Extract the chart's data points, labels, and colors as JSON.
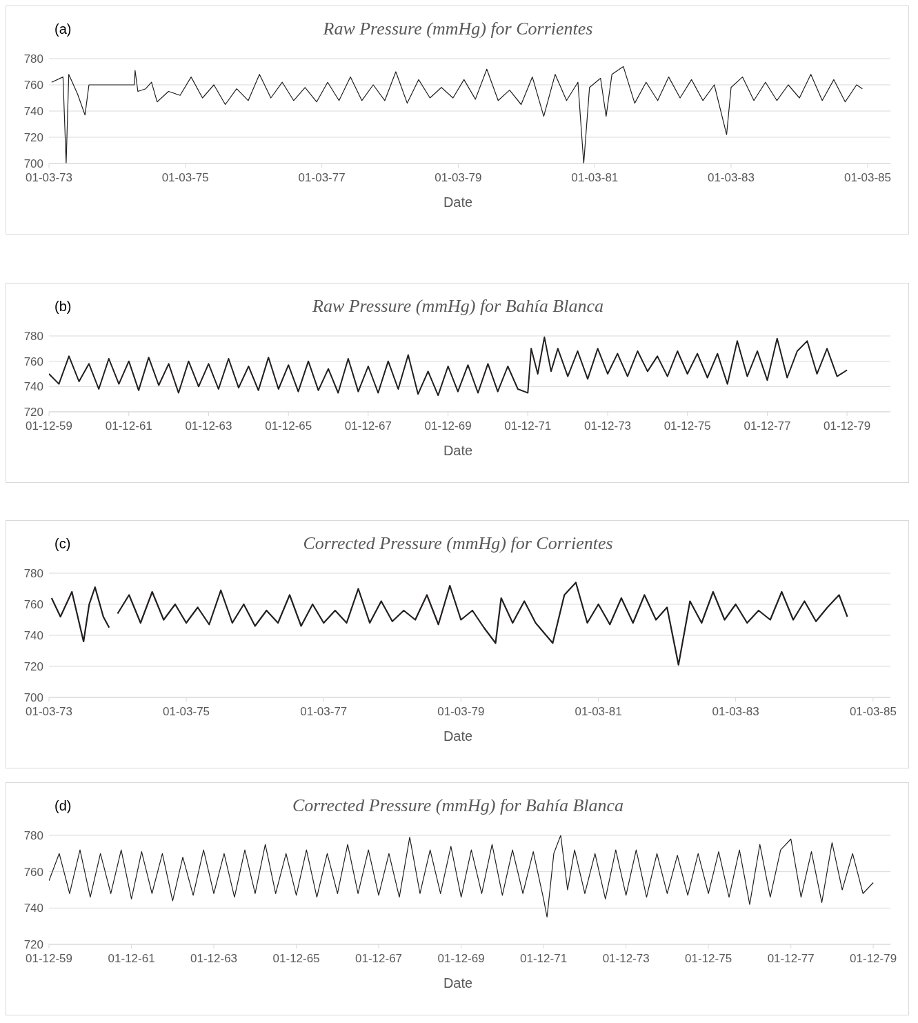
{
  "chart_data": [
    {
      "type": "line",
      "title": "Raw Pressure (mmHg) for Corrientes",
      "xlabel": "Date",
      "annotations": [
        "(a)"
      ],
      "grid": "y",
      "xlim": [
        "1973-03-01",
        "1985-07-01"
      ],
      "ylim": [
        700,
        780
      ],
      "yticks": [
        700,
        720,
        740,
        760,
        780
      ],
      "xticks": [
        {
          "value": "1973-03-01",
          "label": "01-03-73"
        },
        {
          "value": "1975-03-01",
          "label": "01-03-75"
        },
        {
          "value": "1977-03-01",
          "label": "01-03-77"
        },
        {
          "value": "1979-03-01",
          "label": "01-03-79"
        },
        {
          "value": "1981-03-01",
          "label": "01-03-81"
        },
        {
          "value": "1983-03-01",
          "label": "01-03-83"
        },
        {
          "value": "1985-03-01",
          "label": "01-03-85"
        }
      ],
      "x": [
        "1973-03-15",
        "1973-05-15",
        "1973-06-01",
        "1973-06-15",
        "1973-08-01",
        "1973-09-10",
        "1973-10-01",
        "1974-06-01",
        "1974-06-05",
        "1974-06-20",
        "1974-08-01",
        "1974-09-01",
        "1974-10-01",
        "1974-12-01",
        "1975-02-01",
        "1975-04-01",
        "1975-06-01",
        "1975-08-01",
        "1975-10-01",
        "1975-12-01",
        "1976-02-01",
        "1976-04-01",
        "1976-06-01",
        "1976-08-01",
        "1976-10-01",
        "1976-12-01",
        "1977-02-01",
        "1977-04-01",
        "1977-06-01",
        "1977-08-01",
        "1977-10-01",
        "1977-12-01",
        "1978-02-01",
        "1978-04-01",
        "1978-06-01",
        "1978-08-01",
        "1978-10-01",
        "1978-12-01",
        "1979-02-01",
        "1979-04-01",
        "1979-06-01",
        "1979-08-01",
        "1979-10-01",
        "1979-12-01",
        "1980-02-01",
        "1980-04-01",
        "1980-06-01",
        "1980-08-01",
        "1980-10-01",
        "1980-12-01",
        "1981-01-01",
        "1981-02-01",
        "1981-04-01",
        "1981-05-01",
        "1981-06-01",
        "1981-08-01",
        "1981-10-01",
        "1981-12-01",
        "1982-02-01",
        "1982-04-01",
        "1982-06-01",
        "1982-08-01",
        "1982-10-01",
        "1982-12-01",
        "1983-02-05",
        "1983-03-01",
        "1983-05-01",
        "1983-07-01",
        "1983-09-01",
        "1983-11-01",
        "1984-01-01",
        "1984-03-01",
        "1984-05-01",
        "1984-07-01",
        "1984-09-01",
        "1984-11-01",
        "1985-01-01",
        "1985-02-01"
      ],
      "series": [
        {
          "color": "#231f20",
          "values": [
            762,
            766,
            700,
            768,
            753,
            737,
            760,
            760,
            771,
            755,
            757,
            762,
            747,
            755,
            752,
            766,
            750,
            760,
            745,
            757,
            748,
            768,
            750,
            762,
            748,
            758,
            747,
            762,
            748,
            766,
            748,
            760,
            748,
            770,
            746,
            764,
            750,
            758,
            750,
            764,
            749,
            772,
            748,
            756,
            745,
            766,
            736,
            768,
            748,
            762,
            700,
            758,
            765,
            736,
            768,
            774,
            746,
            762,
            748,
            766,
            750,
            764,
            748,
            760,
            722,
            758,
            766,
            748,
            762,
            748,
            760,
            750,
            768,
            748,
            764,
            747,
            760,
            757
          ]
        }
      ]
    },
    {
      "type": "line",
      "title": "Raw Pressure (mmHg) for Bahía Blanca",
      "xlabel": "Date",
      "annotations": [
        "(b)"
      ],
      "grid": "y",
      "xlim": [
        "1959-12-01",
        "1981-01-01"
      ],
      "ylim": [
        720,
        780
      ],
      "yticks": [
        720,
        740,
        760,
        780
      ],
      "xticks": [
        {
          "value": "1959-12-01",
          "label": "01-12-59"
        },
        {
          "value": "1961-12-01",
          "label": "01-12-61"
        },
        {
          "value": "1963-12-01",
          "label": "01-12-63"
        },
        {
          "value": "1965-12-01",
          "label": "01-12-65"
        },
        {
          "value": "1967-12-01",
          "label": "01-12-67"
        },
        {
          "value": "1969-12-01",
          "label": "01-12-69"
        },
        {
          "value": "1971-12-01",
          "label": "01-12-71"
        },
        {
          "value": "1973-12-01",
          "label": "01-12-73"
        },
        {
          "value": "1975-12-01",
          "label": "01-12-75"
        },
        {
          "value": "1977-12-01",
          "label": "01-12-77"
        },
        {
          "value": "1979-12-01",
          "label": "01-12-79"
        }
      ],
      "x": [
        "1959-12",
        "1960-03",
        "1960-06",
        "1960-09",
        "1960-12",
        "1961-03",
        "1961-06",
        "1961-09",
        "1961-12",
        "1962-03",
        "1962-06",
        "1962-09",
        "1962-12",
        "1963-03",
        "1963-06",
        "1963-09",
        "1963-12",
        "1964-03",
        "1964-06",
        "1964-09",
        "1964-12",
        "1965-03",
        "1965-06",
        "1965-09",
        "1965-12",
        "1966-03",
        "1966-06",
        "1966-09",
        "1966-12",
        "1967-03",
        "1967-06",
        "1967-09",
        "1967-12",
        "1968-03",
        "1968-06",
        "1968-09",
        "1968-12",
        "1969-03",
        "1969-06",
        "1969-09",
        "1969-12",
        "1970-03",
        "1970-06",
        "1970-09",
        "1970-12",
        "1971-03",
        "1971-06",
        "1971-09",
        "1971-12",
        "1972-01",
        "1972-03",
        "1972-05",
        "1972-07",
        "1972-09",
        "1972-12",
        "1973-03",
        "1973-06",
        "1973-09",
        "1973-12",
        "1974-03",
        "1974-06",
        "1974-09",
        "1974-12",
        "1975-03",
        "1975-06",
        "1975-09",
        "1975-12",
        "1976-03",
        "1976-06",
        "1976-09",
        "1976-12",
        "1977-03",
        "1977-06",
        "1977-09",
        "1977-12",
        "1978-03",
        "1978-06",
        "1978-09",
        "1978-12",
        "1979-03",
        "1979-06",
        "1979-09",
        "1979-12"
      ],
      "series": [
        {
          "color": "#231f20",
          "values": [
            750,
            742,
            764,
            744,
            758,
            738,
            762,
            742,
            760,
            737,
            763,
            741,
            758,
            735,
            760,
            740,
            758,
            738,
            762,
            739,
            756,
            737,
            763,
            738,
            757,
            736,
            760,
            737,
            754,
            735,
            762,
            736,
            756,
            735,
            760,
            738,
            765,
            734,
            752,
            733,
            756,
            736,
            757,
            735,
            758,
            736,
            756,
            738,
            735,
            770,
            750,
            779,
            752,
            770,
            748,
            768,
            746,
            770,
            750,
            766,
            748,
            768,
            752,
            764,
            748,
            768,
            750,
            766,
            747,
            766,
            742,
            776,
            748,
            768,
            745,
            778,
            747,
            768,
            776,
            750,
            770,
            748,
            753
          ]
        }
      ]
    },
    {
      "type": "line",
      "title": "Corrected Pressure (mmHg) for Corrientes",
      "xlabel": "Date",
      "annotations": [
        "(c)"
      ],
      "grid": "y",
      "xlim": [
        "1973-03-01",
        "1985-06-01"
      ],
      "ylim": [
        700,
        780
      ],
      "yticks": [
        700,
        720,
        740,
        760,
        780
      ],
      "xticks": [
        {
          "value": "1973-03-01",
          "label": "01-03-73"
        },
        {
          "value": "1975-03-01",
          "label": "01-03-75"
        },
        {
          "value": "1977-03-01",
          "label": "01-03-77"
        },
        {
          "value": "1979-03-01",
          "label": "01-03-79"
        },
        {
          "value": "1981-03-01",
          "label": "01-03-81"
        },
        {
          "value": "1983-03-01",
          "label": "01-03-83"
        },
        {
          "value": "1985-03-01",
          "label": "01-03-85"
        }
      ],
      "x": [
        "1973-03-15",
        "1973-05-01",
        "1973-07-01",
        "1973-09-01",
        "1973-10-01",
        "1973-11-01",
        "1973-12-15",
        "1974-01-15",
        "1974-02-01",
        "1974-03-01",
        "1974-05-01",
        "1974-07-01",
        "1974-09-01",
        "1974-11-01",
        "1975-01-01",
        "1975-03-01",
        "1975-05-01",
        "1975-07-01",
        "1975-09-01",
        "1975-11-01",
        "1976-01-01",
        "1976-03-01",
        "1976-05-01",
        "1976-07-01",
        "1976-09-01",
        "1976-11-01",
        "1977-01-01",
        "1977-03-01",
        "1977-05-01",
        "1977-07-01",
        "1977-09-01",
        "1977-11-01",
        "1978-01-01",
        "1978-03-01",
        "1978-05-01",
        "1978-07-01",
        "1978-09-01",
        "1978-11-01",
        "1979-01-01",
        "1979-03-01",
        "1979-05-01",
        "1979-07-01",
        "1979-09-01",
        "1979-10-01",
        "1979-12-01",
        "1980-02-01",
        "1980-04-01",
        "1980-07-01",
        "1980-09-01",
        "1980-11-01",
        "1981-01-01",
        "1981-03-01",
        "1981-05-01",
        "1981-07-01",
        "1981-09-01",
        "1981-11-01",
        "1982-01-01",
        "1982-03-01",
        "1982-05-01",
        "1982-07-01",
        "1982-09-01",
        "1982-11-01",
        "1983-01-01",
        "1983-03-01",
        "1983-05-01",
        "1983-07-01",
        "1983-09-01",
        "1983-11-01",
        "1984-01-01",
        "1984-03-01",
        "1984-05-01",
        "1984-07-01",
        "1984-09-01",
        "1984-10-15"
      ],
      "series": [
        {
          "color": "#231f20",
          "values": [
            764,
            752,
            768,
            736,
            760,
            771,
            752,
            745,
            null,
            754,
            766,
            748,
            768,
            750,
            760,
            748,
            758,
            747,
            769,
            748,
            760,
            746,
            756,
            748,
            766,
            746,
            760,
            748,
            756,
            748,
            770,
            748,
            762,
            749,
            756,
            750,
            766,
            747,
            772,
            750,
            756,
            745,
            735,
            764,
            748,
            762,
            748,
            735,
            766,
            774,
            748,
            760,
            747,
            764,
            748,
            766,
            750,
            758,
            721,
            762,
            748,
            768,
            750,
            760,
            748,
            756,
            750,
            768,
            750,
            762,
            749,
            758,
            766,
            752
          ]
        }
      ]
    },
    {
      "type": "line",
      "title": "Corrected Pressure (mmHg) for Bahía Blanca",
      "xlabel": "Date",
      "annotations": [
        "(d)"
      ],
      "grid": "y",
      "xlim": [
        "1959-12-01",
        "1980-05-01"
      ],
      "ylim": [
        720,
        780
      ],
      "yticks": [
        720,
        740,
        760,
        780
      ],
      "xticks": [
        {
          "value": "1959-12-01",
          "label": "01-12-59"
        },
        {
          "value": "1961-12-01",
          "label": "01-12-61"
        },
        {
          "value": "1963-12-01",
          "label": "01-12-63"
        },
        {
          "value": "1965-12-01",
          "label": "01-12-65"
        },
        {
          "value": "1967-12-01",
          "label": "01-12-67"
        },
        {
          "value": "1969-12-01",
          "label": "01-12-69"
        },
        {
          "value": "1971-12-01",
          "label": "01-12-71"
        },
        {
          "value": "1973-12-01",
          "label": "01-12-73"
        },
        {
          "value": "1975-12-01",
          "label": "01-12-75"
        },
        {
          "value": "1977-12-01",
          "label": "01-12-77"
        },
        {
          "value": "1979-12-01",
          "label": "01-12-79"
        }
      ],
      "x": [
        "1959-12",
        "1960-03",
        "1960-06",
        "1960-09",
        "1960-12",
        "1961-03",
        "1961-06",
        "1961-09",
        "1961-12",
        "1962-03",
        "1962-06",
        "1962-09",
        "1962-12",
        "1963-03",
        "1963-06",
        "1963-09",
        "1963-12",
        "1964-03",
        "1964-06",
        "1964-09",
        "1964-12",
        "1965-03",
        "1965-06",
        "1965-09",
        "1965-12",
        "1966-03",
        "1966-06",
        "1966-09",
        "1966-12",
        "1967-03",
        "1967-06",
        "1967-09",
        "1967-12",
        "1968-03",
        "1968-06",
        "1968-09",
        "1968-12",
        "1969-03",
        "1969-06",
        "1969-09",
        "1969-12",
        "1970-03",
        "1970-06",
        "1970-09",
        "1970-12",
        "1971-03",
        "1971-06",
        "1971-09",
        "1971-12",
        "1972-01",
        "1972-03",
        "1972-05",
        "1972-07",
        "1972-09",
        "1972-12",
        "1973-03",
        "1973-06",
        "1973-09",
        "1973-12",
        "1974-03",
        "1974-06",
        "1974-09",
        "1974-12",
        "1975-03",
        "1975-06",
        "1975-09",
        "1975-12",
        "1976-03",
        "1976-06",
        "1976-09",
        "1976-12",
        "1977-03",
        "1977-06",
        "1977-09",
        "1977-12",
        "1978-03",
        "1978-06",
        "1978-09",
        "1978-12",
        "1979-03",
        "1979-06",
        "1979-09",
        "1979-12"
      ],
      "series": [
        {
          "color": "#231f20",
          "values": [
            755,
            770,
            748,
            772,
            746,
            770,
            748,
            772,
            745,
            771,
            748,
            770,
            744,
            768,
            747,
            772,
            748,
            770,
            746,
            772,
            748,
            775,
            748,
            770,
            747,
            772,
            746,
            770,
            748,
            775,
            748,
            772,
            747,
            770,
            746,
            779,
            748,
            772,
            748,
            774,
            746,
            772,
            748,
            775,
            747,
            772,
            748,
            771,
            745,
            735,
            770,
            780,
            750,
            772,
            748,
            770,
            745,
            772,
            747,
            772,
            746,
            770,
            748,
            769,
            747,
            770,
            748,
            771,
            746,
            772,
            742,
            775,
            746,
            772,
            778,
            746,
            771,
            743,
            776,
            750,
            770,
            748,
            754
          ]
        }
      ]
    }
  ]
}
